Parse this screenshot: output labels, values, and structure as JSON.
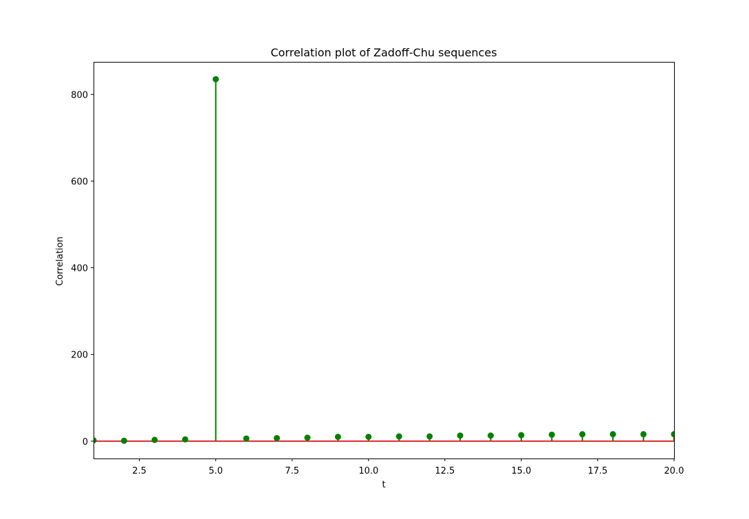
{
  "chart_data": {
    "type": "scatter",
    "subtype": "stem",
    "title": "Correlation plot of Zadoff-Chu sequences",
    "xlabel": "t",
    "ylabel": "Correlation",
    "xlim": [
      1,
      20
    ],
    "ylim": [
      -40,
      875
    ],
    "x_ticks": [
      2.5,
      5.0,
      7.5,
      10.0,
      12.5,
      15.0,
      17.5,
      20.0
    ],
    "x_tick_labels": [
      "2.5",
      "5.0",
      "7.5",
      "10.0",
      "12.5",
      "15.0",
      "17.5",
      "20.0"
    ],
    "y_ticks": [
      0,
      200,
      400,
      600,
      800
    ],
    "y_tick_labels": [
      "0",
      "200",
      "400",
      "600",
      "800"
    ],
    "grid": false,
    "legend": "none",
    "series": [
      {
        "x": [
          1,
          2,
          3,
          4,
          5,
          6,
          7,
          8,
          9,
          10,
          11,
          12,
          13,
          14,
          15,
          16,
          17,
          18,
          19,
          20
        ],
        "values": [
          2,
          1,
          3,
          4,
          835,
          6,
          7,
          8,
          10,
          10,
          11,
          11,
          13,
          13,
          14,
          15,
          16,
          16,
          16,
          16
        ]
      }
    ],
    "colors": {
      "stem": "#008000",
      "marker": "#008000",
      "baseline": "#d62728",
      "axes": "#000000"
    }
  }
}
